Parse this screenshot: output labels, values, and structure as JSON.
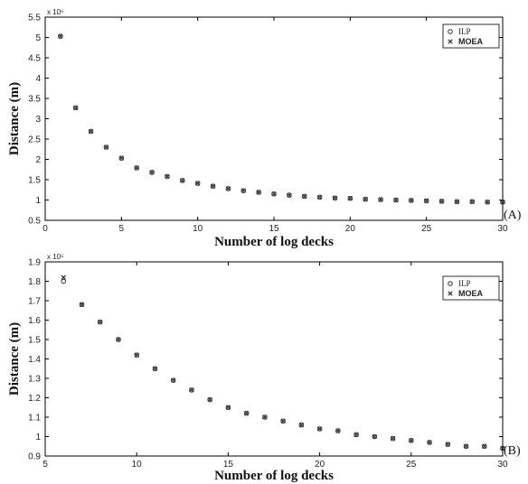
{
  "chart_data": [
    {
      "type": "scatter",
      "panel_label": "(A)",
      "xlabel": "Number of log decks",
      "ylabel": "Distance (m)",
      "y_exponent": "x 10⁵",
      "xlim": [
        0,
        30
      ],
      "ylim": [
        0.5,
        5.5
      ],
      "xticks": [
        0,
        5,
        10,
        15,
        20,
        25,
        30
      ],
      "yticks": [
        0.5,
        1,
        1.5,
        2,
        2.5,
        3,
        3.5,
        4,
        4.5,
        5,
        5.5
      ],
      "legend_position": "top-right",
      "series": [
        {
          "name": "ILP",
          "marker": "circle",
          "x": [
            1,
            2,
            3,
            4,
            5,
            6,
            7,
            8,
            9,
            10,
            11,
            12,
            13,
            14,
            15,
            16,
            17,
            18,
            19,
            20,
            21,
            22,
            23,
            24,
            25,
            26,
            27,
            28,
            29,
            30
          ],
          "values": [
            5.03,
            3.27,
            2.69,
            2.3,
            2.03,
            1.79,
            1.68,
            1.58,
            1.48,
            1.41,
            1.34,
            1.28,
            1.23,
            1.19,
            1.15,
            1.12,
            1.09,
            1.07,
            1.05,
            1.04,
            1.02,
            1.01,
            1.0,
            0.99,
            0.98,
            0.97,
            0.96,
            0.96,
            0.95,
            0.95
          ]
        },
        {
          "name": "MOEA",
          "marker": "x",
          "x": [
            1,
            2,
            3,
            4,
            5,
            6,
            7,
            8,
            9,
            10,
            11,
            12,
            13,
            14,
            15,
            16,
            17,
            18,
            19,
            20,
            21,
            22,
            23,
            24,
            25,
            26,
            27,
            28,
            29,
            30
          ],
          "values": [
            5.03,
            3.27,
            2.69,
            2.3,
            2.03,
            1.79,
            1.68,
            1.58,
            1.48,
            1.41,
            1.34,
            1.28,
            1.23,
            1.19,
            1.15,
            1.12,
            1.09,
            1.07,
            1.05,
            1.04,
            1.02,
            1.01,
            1.0,
            0.99,
            0.98,
            0.97,
            0.96,
            0.96,
            0.95,
            0.95
          ]
        }
      ]
    },
    {
      "type": "scatter",
      "panel_label": "(B)",
      "xlabel": "Number of log decks",
      "ylabel": "Distance (m)",
      "y_exponent": "x 10⁵",
      "xlim": [
        5,
        30
      ],
      "ylim": [
        0.9,
        1.9
      ],
      "xticks": [
        5,
        10,
        15,
        20,
        25,
        30
      ],
      "yticks": [
        0.9,
        1,
        1.1,
        1.2,
        1.3,
        1.4,
        1.5,
        1.6,
        1.7,
        1.8,
        1.9
      ],
      "legend_position": "top-right",
      "series": [
        {
          "name": "ILP",
          "marker": "circle",
          "x": [
            6,
            7,
            8,
            9,
            10,
            11,
            12,
            13,
            14,
            15,
            16,
            17,
            18,
            19,
            20,
            21,
            22,
            23,
            24,
            25,
            26,
            27,
            28,
            29,
            30
          ],
          "values": [
            1.8,
            1.68,
            1.59,
            1.5,
            1.42,
            1.35,
            1.29,
            1.24,
            1.19,
            1.15,
            1.12,
            1.1,
            1.08,
            1.06,
            1.04,
            1.03,
            1.01,
            1.0,
            0.99,
            0.98,
            0.97,
            0.96,
            0.95,
            0.95,
            0.94
          ]
        },
        {
          "name": "MOEA",
          "marker": "x",
          "x": [
            6,
            7,
            8,
            9,
            10,
            11,
            12,
            13,
            14,
            15,
            16,
            17,
            18,
            19,
            20,
            21,
            22,
            23,
            24,
            25,
            26,
            27,
            28,
            29,
            30
          ],
          "values": [
            1.82,
            1.68,
            1.59,
            1.5,
            1.42,
            1.35,
            1.29,
            1.24,
            1.19,
            1.15,
            1.12,
            1.1,
            1.08,
            1.06,
            1.04,
            1.03,
            1.01,
            1.0,
            0.99,
            0.98,
            0.97,
            0.96,
            0.95,
            0.95,
            0.94
          ]
        }
      ]
    }
  ],
  "colors": {
    "marker": "#333333",
    "axis": "#000000",
    "background": "#ffffff"
  }
}
